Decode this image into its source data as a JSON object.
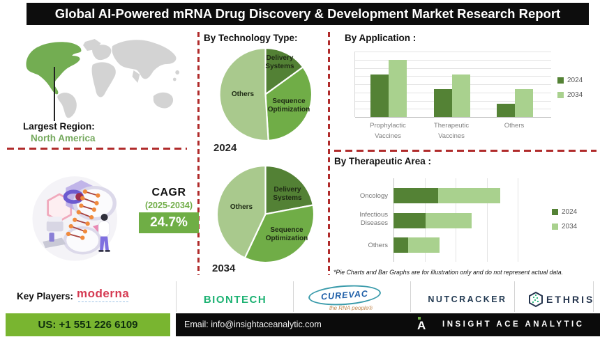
{
  "title": "Global AI-Powered mRNA Drug Discovery & Development Market Research Report",
  "region": {
    "label": "Largest Region:",
    "value": "North America"
  },
  "cagr": {
    "label": "CAGR",
    "period": "(2025-2034)",
    "value": "24.7%"
  },
  "disclaimer": "*Pie Charts and Bar Graphs are for illustration only and do not represent actual data.",
  "chart_data": [
    {
      "id": "tech-2024",
      "type": "pie",
      "title": "By Technology Type:",
      "year": "2024",
      "slices": [
        {
          "label": "Delivery Systems",
          "value": 15,
          "color": "#538135"
        },
        {
          "label": "Sequence Optimization",
          "value": 34,
          "color": "#70ad47"
        },
        {
          "label": "Others",
          "value": 51,
          "color": "#a9c98d"
        }
      ]
    },
    {
      "id": "tech-2034",
      "type": "pie",
      "title": "By Technology Type:",
      "year": "2034",
      "slices": [
        {
          "label": "Delivery Systems",
          "value": 22,
          "color": "#538135"
        },
        {
          "label": "Sequence Optimization",
          "value": 35,
          "color": "#70ad47"
        },
        {
          "label": "Others",
          "value": 43,
          "color": "#a9c98d"
        }
      ]
    },
    {
      "id": "application",
      "type": "bar",
      "title": "By Application :",
      "categories": [
        "Prophylactic Vaccines",
        "Therapeutic Vaccines",
        "Others"
      ],
      "series": [
        {
          "name": "2024",
          "color": "#548235",
          "values": [
            65,
            43,
            20
          ]
        },
        {
          "name": "2034",
          "color": "#a9d18e",
          "values": [
            87,
            65,
            43
          ]
        }
      ],
      "ylim": [
        0,
        100
      ],
      "grid": true,
      "legend_position": "right"
    },
    {
      "id": "therapeutic",
      "type": "stacked-hbar",
      "title": "By Therapeutic Area :",
      "categories": [
        "Oncology",
        "Infectious Diseases",
        "Others"
      ],
      "series": [
        {
          "name": "2024",
          "color": "#548235",
          "values": [
            36,
            26,
            12
          ]
        },
        {
          "name": "2034",
          "color": "#a9d18e",
          "values": [
            50,
            37,
            25
          ]
        }
      ],
      "xlim": [
        0,
        100
      ],
      "grid": true,
      "legend_position": "right"
    }
  ],
  "key_players": {
    "label": "Key Players:",
    "companies": [
      "moderna",
      "BIONTECH",
      "CUREVAC",
      "NUTCRACKER",
      "ETHRIS"
    ],
    "curevac_tagline": "the RNA people®"
  },
  "footer": {
    "phone": "US: +1 551 226 6109",
    "email": "Email: info@insightaceanalytic.com",
    "brand": "INSIGHT ACE ANALYTIC"
  },
  "colors": {
    "dark_green": "#548235",
    "mid_green": "#70ad47",
    "light_green": "#a9d18e",
    "cagr_green": "#6fae45",
    "phone_green": "#79b530",
    "dashed_red": "#b02b2b",
    "map_green": "#73ad52",
    "moderna_red": "#d53a52",
    "biontech_green": "#1db273",
    "curevac_blue": "#1f5fa8",
    "nutcracker_navy": "#243b53",
    "ethris_navy": "#24344d"
  }
}
